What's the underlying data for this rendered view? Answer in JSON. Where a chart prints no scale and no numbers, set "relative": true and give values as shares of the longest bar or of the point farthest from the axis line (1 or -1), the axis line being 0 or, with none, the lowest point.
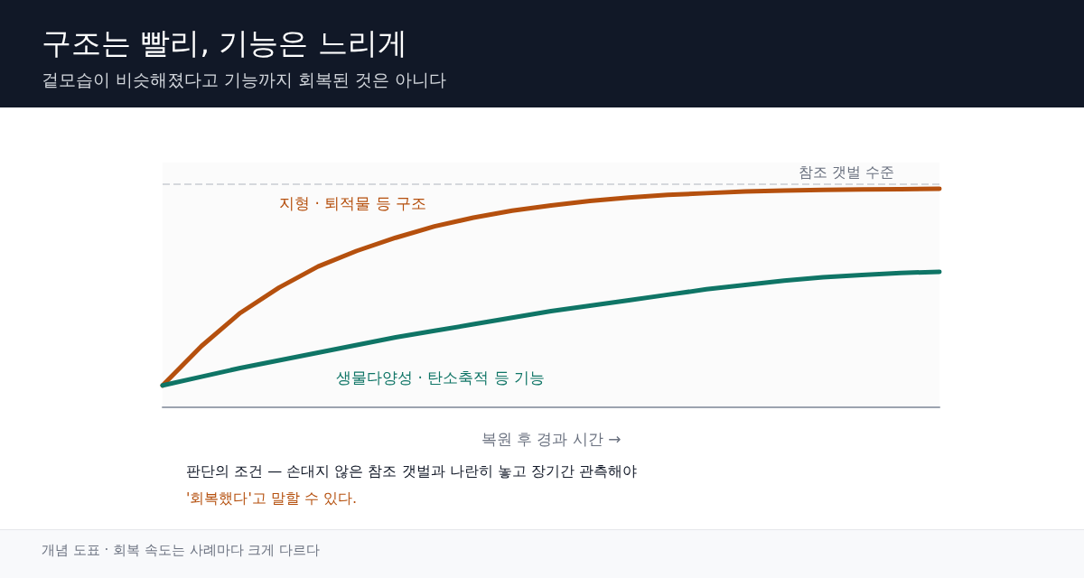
{
  "chart_data": {
    "type": "line",
    "title": "구조는 빨리, 기능은 느리게",
    "subtitle": "겉모습이 비슷해졌다고 기능까지 회복된 것은 아니다",
    "xlabel": "복원 후 경과 시간 →",
    "relative": true,
    "legend": false,
    "grid": false,
    "marker": "none",
    "line_style": "solid",
    "categories": [
      null,
      null,
      null,
      null,
      null,
      null,
      null,
      null,
      null,
      null,
      null,
      null,
      null,
      null,
      null,
      null,
      null,
      null,
      null,
      null,
      null
    ],
    "series": [
      {
        "name": "지형 · 퇴적물 등 구조",
        "color": "#b5500e",
        "values": [
          0.1,
          0.28,
          0.432,
          0.548,
          0.644,
          0.716,
          0.776,
          0.828,
          0.868,
          0.9,
          0.924,
          0.944,
          0.96,
          0.972,
          0.98,
          0.988,
          0.992,
          0.995,
          0.997,
          0.998,
          1
        ]
      },
      {
        "name": "생물다양성 · 탄소축적 등 기능",
        "color": "#0f7566",
        "values": [
          0.1,
          0.14,
          0.18,
          0.215,
          0.25,
          0.285,
          0.32,
          0.35,
          0.38,
          0.41,
          0.44,
          0.465,
          0.49,
          0.515,
          0.54,
          0.56,
          0.58,
          0.595,
          0.605,
          0.615,
          0.62
        ]
      }
    ],
    "ref_lines": [
      {
        "axis": "y",
        "value": 1.016,
        "label": "참조 갯벌 수준",
        "color": "#d5d8dc",
        "line_style": "dashed"
      }
    ],
    "annotations": [
      "판단의 조건 — 손대지 않은 참조 갯벌과 나란히 놓고 장기간 관측해야",
      "'회복했다'고 말할 수 있다.",
      "개념 도표 · 회복 속도는 사례마다 크게 다르다"
    ]
  }
}
